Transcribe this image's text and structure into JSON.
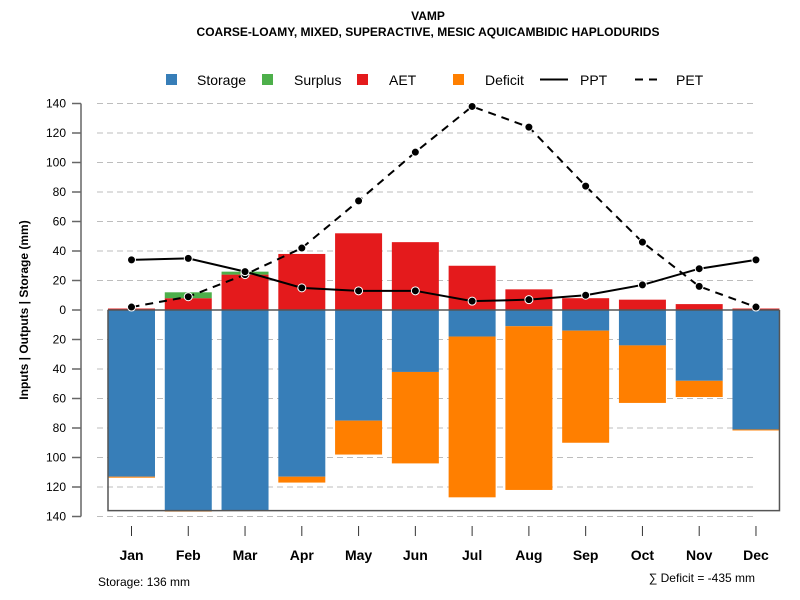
{
  "chart_data": {
    "type": "bar",
    "title": "VAMP",
    "subtitle": "COARSE-LOAMY, MIXED, SUPERACTIVE, MESIC AQUICAMBIDIC HAPLODURIDS",
    "ylabel": "Inputs | Outputs | Storage    (mm)",
    "xlabel": "",
    "ylim": [
      -140,
      140
    ],
    "yticks": [
      140,
      120,
      100,
      80,
      60,
      40,
      20,
      0,
      -20,
      -40,
      -60,
      -80,
      -100,
      -120,
      -140
    ],
    "ytick_labels": [
      "140",
      "120",
      "100",
      "80",
      "60",
      "40",
      "20",
      "0",
      "20",
      "40",
      "60",
      "80",
      "100",
      "120",
      "140"
    ],
    "grid": true,
    "legend_position": "top",
    "categories": [
      "Jan",
      "Feb",
      "Mar",
      "Apr",
      "May",
      "Jun",
      "Jul",
      "Aug",
      "Sep",
      "Oct",
      "Nov",
      "Dec"
    ],
    "series": [
      {
        "name": "Storage",
        "kind": "bar-below",
        "color": "#377EB8",
        "values": [
          113,
          136,
          136,
          113,
          75,
          42,
          18,
          11,
          14,
          24,
          48,
          81
        ]
      },
      {
        "name": "Deficit",
        "kind": "bar-below-stacked",
        "color": "#FF7F00",
        "values": [
          0.5,
          0.5,
          0,
          4,
          23,
          62,
          109,
          111,
          76,
          39,
          11,
          0.5
        ]
      },
      {
        "name": "AET",
        "kind": "bar-above",
        "color": "#E41A1C",
        "values": [
          1,
          8,
          24,
          38,
          52,
          46,
          30,
          14,
          8,
          7,
          4,
          1
        ]
      },
      {
        "name": "Surplus",
        "kind": "bar-above-stacked",
        "color": "#4DAF4A",
        "values": [
          0,
          4,
          2,
          0,
          0,
          0,
          0,
          0,
          0,
          0,
          0,
          0
        ]
      },
      {
        "name": "PPT",
        "kind": "line-solid",
        "color": "#000000",
        "values": [
          34,
          35,
          26,
          15,
          13,
          13,
          6,
          7,
          10,
          17,
          28,
          34
        ]
      },
      {
        "name": "PET",
        "kind": "line-dashed",
        "color": "#000000",
        "values": [
          2,
          9,
          24,
          42,
          74,
          107,
          138,
          124,
          84,
          46,
          16,
          2
        ]
      }
    ],
    "legend": [
      {
        "label": "Storage",
        "type": "square",
        "color": "#377EB8"
      },
      {
        "label": "Surplus",
        "type": "square",
        "color": "#4DAF4A"
      },
      {
        "label": "AET",
        "type": "square",
        "color": "#E41A1C"
      },
      {
        "label": "Deficit",
        "type": "square",
        "color": "#FF7F00"
      },
      {
        "label": "PPT",
        "type": "line-solid",
        "color": "#000000"
      },
      {
        "label": "PET",
        "type": "line-dashed",
        "color": "#000000"
      }
    ],
    "storage_capacity": 136,
    "annotations": {
      "storage": "Storage: 136 mm",
      "deficit_sum": "∑ Deficit = -435 mm"
    }
  }
}
